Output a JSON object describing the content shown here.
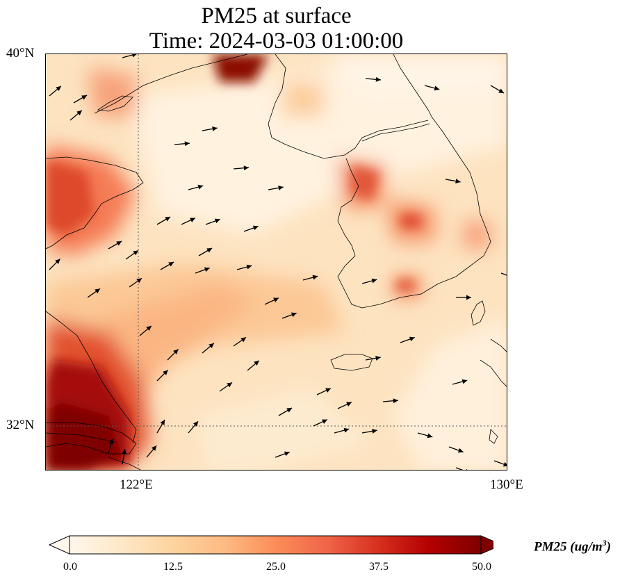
{
  "title": {
    "line1": "PM25 at surface",
    "line2": "Time: 2024-03-03 01:00:00"
  },
  "axes": {
    "lat_labels": [
      "40°N",
      "32°N"
    ],
    "lon_labels": [
      "122°E",
      "130°E"
    ]
  },
  "colorbar": {
    "label": "PM25 (ug/m",
    "label_sup": "3",
    "label_close": ")",
    "ticks": [
      "0.0",
      "12.5",
      "25.0",
      "37.5",
      "50.0"
    ],
    "range": [
      0,
      50
    ],
    "colormap": [
      "#fff7ec",
      "#fee8c8",
      "#fdd49e",
      "#fdbb84",
      "#fc8d59",
      "#ef6548",
      "#d7301f",
      "#b30000",
      "#7f0000"
    ]
  },
  "map": {
    "lat_range": [
      31,
      40
    ],
    "lon_range": [
      120,
      130
    ],
    "gridlines": {
      "lat": 32,
      "lon": 122
    },
    "hotspots_note": "",
    "wind_field": "quiver"
  }
}
